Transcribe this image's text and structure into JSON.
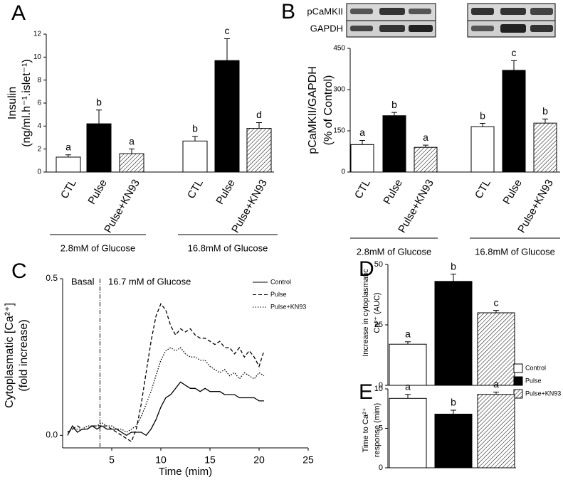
{
  "chart_data": [
    {
      "type": "bar",
      "panel": "A",
      "ylabel": [
        "Insulin",
        "(ng/ml.h⁻¹.islet⁻¹)"
      ],
      "categories": [
        "CTL",
        "Pulse",
        "Pulse+KN93",
        "CTL",
        "Pulse",
        "Pulse+KN93"
      ],
      "values": [
        1.3,
        4.2,
        1.6,
        2.7,
        9.7,
        3.8
      ],
      "errors": [
        0.2,
        1.2,
        0.4,
        0.4,
        1.9,
        0.5
      ],
      "letters": [
        "a",
        "b",
        "a",
        "b",
        "c",
        "d"
      ],
      "fills": [
        "#ffffff",
        "#000000",
        "hatch",
        "#ffffff",
        "#000000",
        "hatch"
      ],
      "group_labels": [
        "2.8mM of Glucose",
        "16.8mM of Glucose"
      ],
      "ylim": [
        0,
        12
      ],
      "yticks": [
        0,
        2,
        4,
        6,
        8,
        10,
        12
      ]
    },
    {
      "type": "bar",
      "panel": "B",
      "ylabel": [
        "pCaMKII/GAPDH",
        "(% of Control)"
      ],
      "blot_labels": [
        "pCaMKII",
        "GAPDH"
      ],
      "categories": [
        "CTL",
        "Pulse",
        "Pulse+KN93",
        "CTL",
        "Pulse",
        "Pulse+KN93"
      ],
      "values": [
        100,
        205,
        90,
        165,
        370,
        178
      ],
      "errors": [
        15,
        12,
        8,
        12,
        35,
        15
      ],
      "letters": [
        "a",
        "b",
        "a",
        "b",
        "c",
        "b"
      ],
      "fills": [
        "#ffffff",
        "#000000",
        "hatch",
        "#ffffff",
        "#000000",
        "hatch"
      ],
      "group_labels": [
        "2.8mM of Glucose",
        "16.8mM of Glucose"
      ],
      "ylim": [
        0,
        450
      ],
      "yticks": [
        0,
        150,
        300,
        450
      ]
    },
    {
      "type": "line",
      "panel": "C",
      "ylabel": [
        "Cytoplasmatic [Ca²⁺]",
        "(fold increase)"
      ],
      "xlabel": "Time (mim)",
      "annotations": [
        "Basal",
        "16.7 mM of Glucose"
      ],
      "divider_x": 3.8,
      "x": [
        0.5,
        1,
        1.5,
        2,
        2.5,
        3,
        3.5,
        4,
        4.5,
        5,
        5.5,
        6,
        6.5,
        7,
        7.5,
        8,
        8.5,
        9,
        9.5,
        10,
        10.5,
        11,
        11.5,
        12,
        12.5,
        13,
        13.5,
        14,
        14.5,
        15,
        15.5,
        16,
        16.5,
        17,
        17.5,
        18,
        18.5,
        19,
        19.5,
        20,
        20.5
      ],
      "series": [
        {
          "name": "Control",
          "color": "#000000",
          "dash": "solid",
          "values": [
            0.0,
            0.03,
            0.01,
            0.02,
            0.02,
            0.03,
            0.02,
            0.03,
            0.02,
            0.02,
            0.02,
            0.01,
            0.0,
            0.01,
            0.01,
            0.01,
            0.0,
            0.02,
            0.05,
            0.09,
            0.12,
            0.13,
            0.15,
            0.17,
            0.16,
            0.15,
            0.15,
            0.14,
            0.15,
            0.14,
            0.14,
            0.14,
            0.13,
            0.13,
            0.13,
            0.12,
            0.12,
            0.12,
            0.12,
            0.11,
            0.11
          ]
        },
        {
          "name": "Pulse",
          "color": "#000000",
          "dash": "dashed",
          "values": [
            0.01,
            0.02,
            0.03,
            0.02,
            0.02,
            0.03,
            0.03,
            0.03,
            0.03,
            0.02,
            0.01,
            0.0,
            -0.01,
            -0.02,
            0.02,
            0.1,
            0.2,
            0.3,
            0.38,
            0.42,
            0.4,
            0.35,
            0.32,
            0.34,
            0.33,
            0.34,
            0.32,
            0.31,
            0.31,
            0.3,
            0.29,
            0.3,
            0.28,
            0.28,
            0.26,
            0.28,
            0.25,
            0.27,
            0.25,
            0.22,
            0.27
          ]
        },
        {
          "name": "Pulse+KN93",
          "color": "#000000",
          "dash": "dotted",
          "values": [
            0.01,
            0.02,
            0.02,
            0.02,
            0.03,
            0.03,
            0.03,
            0.04,
            0.03,
            0.03,
            0.02,
            0.02,
            0.01,
            0.02,
            0.03,
            0.06,
            0.1,
            0.14,
            0.19,
            0.24,
            0.27,
            0.28,
            0.27,
            0.28,
            0.26,
            0.25,
            0.25,
            0.24,
            0.24,
            0.22,
            0.21,
            0.2,
            0.21,
            0.19,
            0.2,
            0.18,
            0.2,
            0.19,
            0.18,
            0.2,
            0.19
          ]
        }
      ],
      "xlim": [
        0,
        25
      ],
      "xticks": [
        5,
        10,
        15,
        20,
        25
      ],
      "ylim": [
        -0.04,
        0.5
      ],
      "yticks": [
        {
          "value": 0,
          "label": "0.0"
        },
        0.5
      ]
    },
    {
      "type": "bar",
      "panel": "D",
      "ylabel": [
        "Increase in cytoplasmatic",
        "Ca²⁺ (AUC)"
      ],
      "categories": [
        "Control",
        "Pulse",
        "Pulse+KN93"
      ],
      "values": [
        17,
        43,
        30
      ],
      "errors": [
        1,
        3,
        1
      ],
      "letters": [
        "a",
        "b",
        "c"
      ],
      "fills": [
        "#ffffff",
        "#000000",
        "hatch"
      ],
      "legend": true,
      "ylim": [
        0,
        50
      ],
      "yticks": [
        0,
        25,
        50
      ]
    },
    {
      "type": "bar",
      "panel": "E",
      "ylabel": [
        "Time to Ca²⁺",
        "response (mim)"
      ],
      "categories": [
        null,
        null,
        null
      ],
      "values": [
        8.8,
        6.8,
        9.3
      ],
      "errors": [
        0.5,
        0.5,
        0.3
      ],
      "letters": [
        "a",
        "b",
        "a"
      ],
      "fills": [
        "#ffffff",
        "#000000",
        "hatch"
      ],
      "ylim": [
        0,
        10
      ],
      "yticks": [
        0,
        5,
        10
      ]
    }
  ]
}
